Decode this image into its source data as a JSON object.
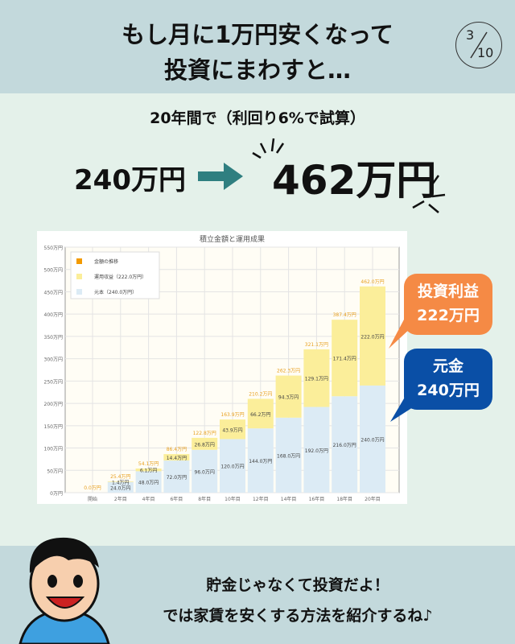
{
  "header": {
    "title_line1": "もし月に1万円安くなって",
    "title_line2": "投資にまわすと…",
    "page_current": "3",
    "page_total": "10"
  },
  "summary": {
    "condition": "20年間で（利回り6%で試算）",
    "before": "240万円",
    "after": "462万円"
  },
  "callouts": {
    "profit_label": "投資利益",
    "profit_value": "222万円",
    "principal_label": "元金",
    "principal_value": "240万円",
    "profit_color": "#f58a45",
    "principal_color": "#0a4fa6"
  },
  "footer": {
    "line1": "貯金じゃなくて投資だよ！",
    "line2": "では家賃を安くする方法を紹介するね♪"
  },
  "chart_data": {
    "type": "bar",
    "stacked": true,
    "title": "積立金額と運用成果",
    "categories": [
      "開始",
      "2年目",
      "4年目",
      "6年目",
      "8年目",
      "10年目",
      "12年目",
      "14年目",
      "16年目",
      "18年目",
      "20年目"
    ],
    "ylim": [
      0,
      550
    ],
    "yticks": [
      0,
      50,
      100,
      150,
      200,
      250,
      300,
      350,
      400,
      450,
      500,
      550
    ],
    "ytick_suffix": "万円",
    "grid": true,
    "legend_position": "top-left",
    "legend": [
      "金額の推移",
      "運用収益（222.0万円）",
      "元本（240.0万円）"
    ],
    "series": [
      {
        "name": "元本（240.0万円）",
        "color": "#dcebf5",
        "values": [
          0,
          24.0,
          48.0,
          72.0,
          96.0,
          120.0,
          144.0,
          168.0,
          192.0,
          216.0,
          240.0
        ]
      },
      {
        "name": "運用収益（222.0万円）",
        "color": "#fbee9a",
        "values": [
          0,
          1.4,
          6.1,
          14.4,
          26.8,
          43.9,
          66.2,
          94.3,
          129.1,
          171.4,
          222.0
        ]
      }
    ],
    "totals": [
      0.0,
      25.4,
      54.1,
      86.4,
      122.8,
      163.9,
      210.2,
      262.3,
      321.1,
      387.4,
      462.0
    ]
  }
}
